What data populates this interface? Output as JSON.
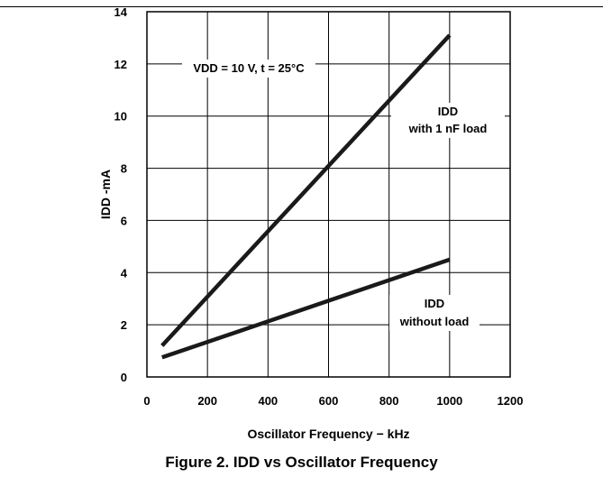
{
  "figure_caption": "Figure 2. IDD vs Oscillator Frequency",
  "chart_data": {
    "type": "line",
    "xlabel": "Oscillator Frequency − kHz",
    "ylabel": "IDD -mA",
    "xlim": [
      0,
      1200
    ],
    "ylim": [
      0,
      14
    ],
    "xticks": [
      0,
      200,
      400,
      600,
      800,
      1000,
      1200
    ],
    "yticks": [
      0,
      2,
      4,
      6,
      8,
      10,
      12,
      14
    ],
    "grid": true,
    "series": [
      {
        "id": "with_load",
        "x": [
          50,
          1000
        ],
        "y": [
          1.2,
          13.1
        ]
      },
      {
        "id": "without_load",
        "x": [
          50,
          1000
        ],
        "y": [
          0.75,
          4.5
        ]
      }
    ],
    "annotations": [
      {
        "id": "conditions",
        "lines": [
          "VDD = 10 V, t = 25°C"
        ]
      },
      {
        "id": "with_load_label",
        "lines": [
          "IDD",
          "with 1 nF load"
        ]
      },
      {
        "id": "without_load_label",
        "lines": [
          "IDD",
          "without load"
        ]
      }
    ],
    "line_color": "#1a1a1a"
  }
}
